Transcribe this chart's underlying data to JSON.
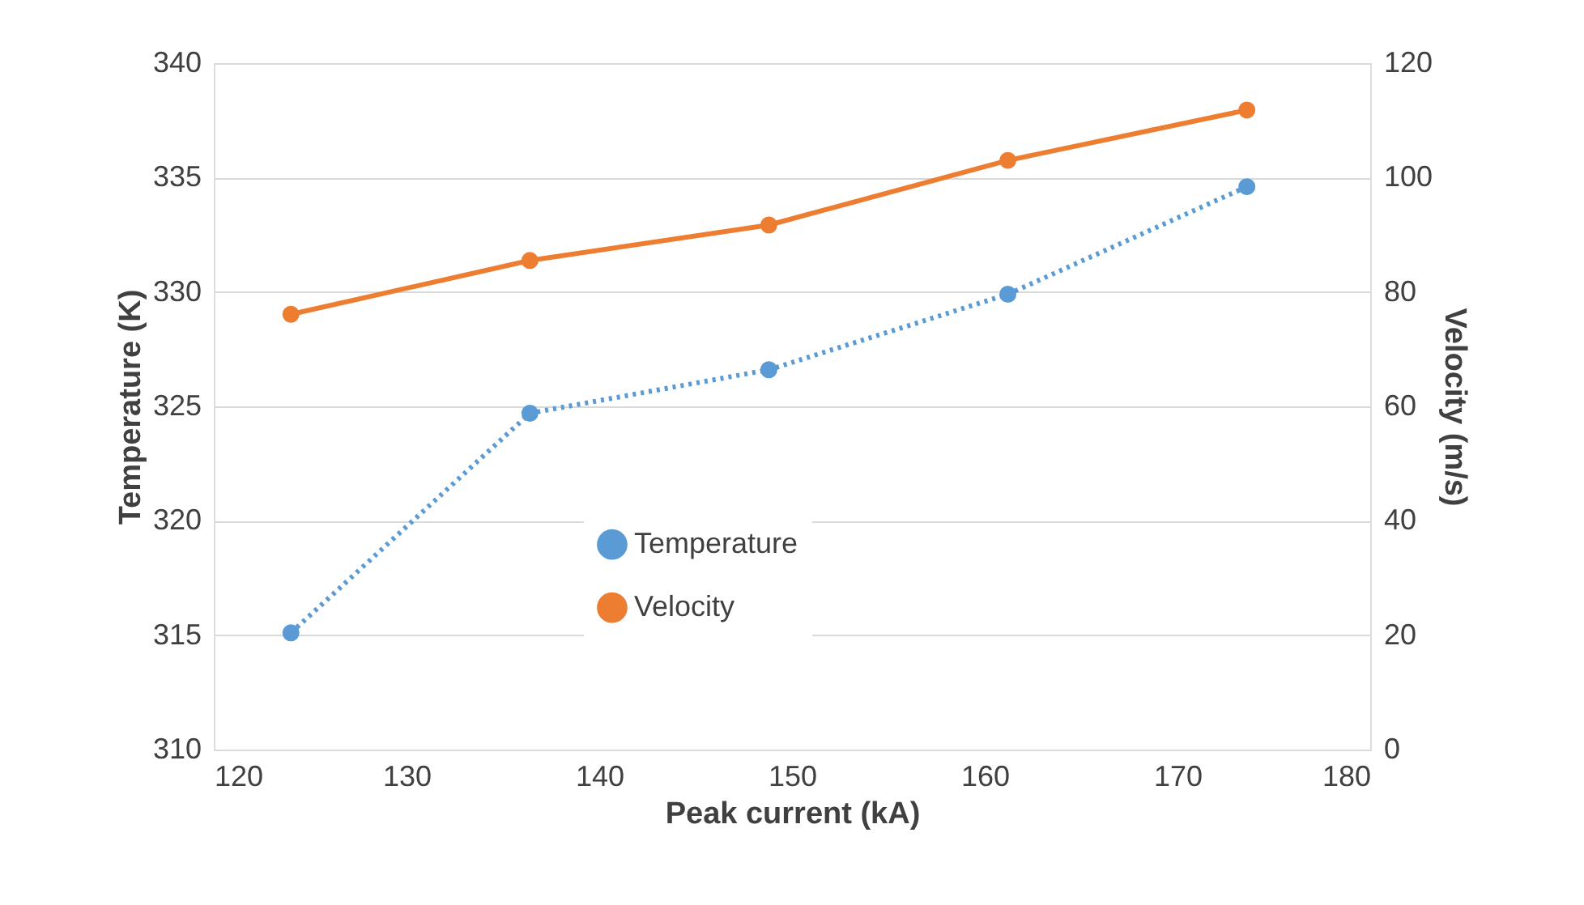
{
  "chart_data": {
    "type": "line",
    "xlabel": "Peak current (kA)",
    "ylabel": "Temperature (K)",
    "y2label": "Velocity (m/s)",
    "x": [
      124,
      136.4,
      148.8,
      161.2,
      173.6
    ],
    "series": [
      {
        "name": "Temperature",
        "color": "#5b9bd5",
        "values": [
          315.1,
          324.7,
          326.6,
          329.9,
          334.6
        ],
        "line_style": "dotted",
        "marker": "circle"
      },
      {
        "name": "Velocity",
        "color": "#ed7d31",
        "values": [
          76.1,
          85.5,
          91.7,
          103,
          111.8
        ],
        "axis": "y2",
        "line_style": "solid",
        "marker": "circle"
      }
    ],
    "xlim": [
      120,
      180
    ],
    "xticks": [
      120,
      130,
      140,
      150,
      160,
      170,
      180
    ],
    "ylim": [
      310,
      340
    ],
    "yticks": [
      310,
      315,
      320,
      325,
      330,
      335,
      340
    ],
    "y2lim": [
      0,
      120
    ],
    "y2ticks": [
      0,
      20,
      40,
      60,
      80,
      100,
      120
    ],
    "grid": "y",
    "legend": "bottom"
  }
}
